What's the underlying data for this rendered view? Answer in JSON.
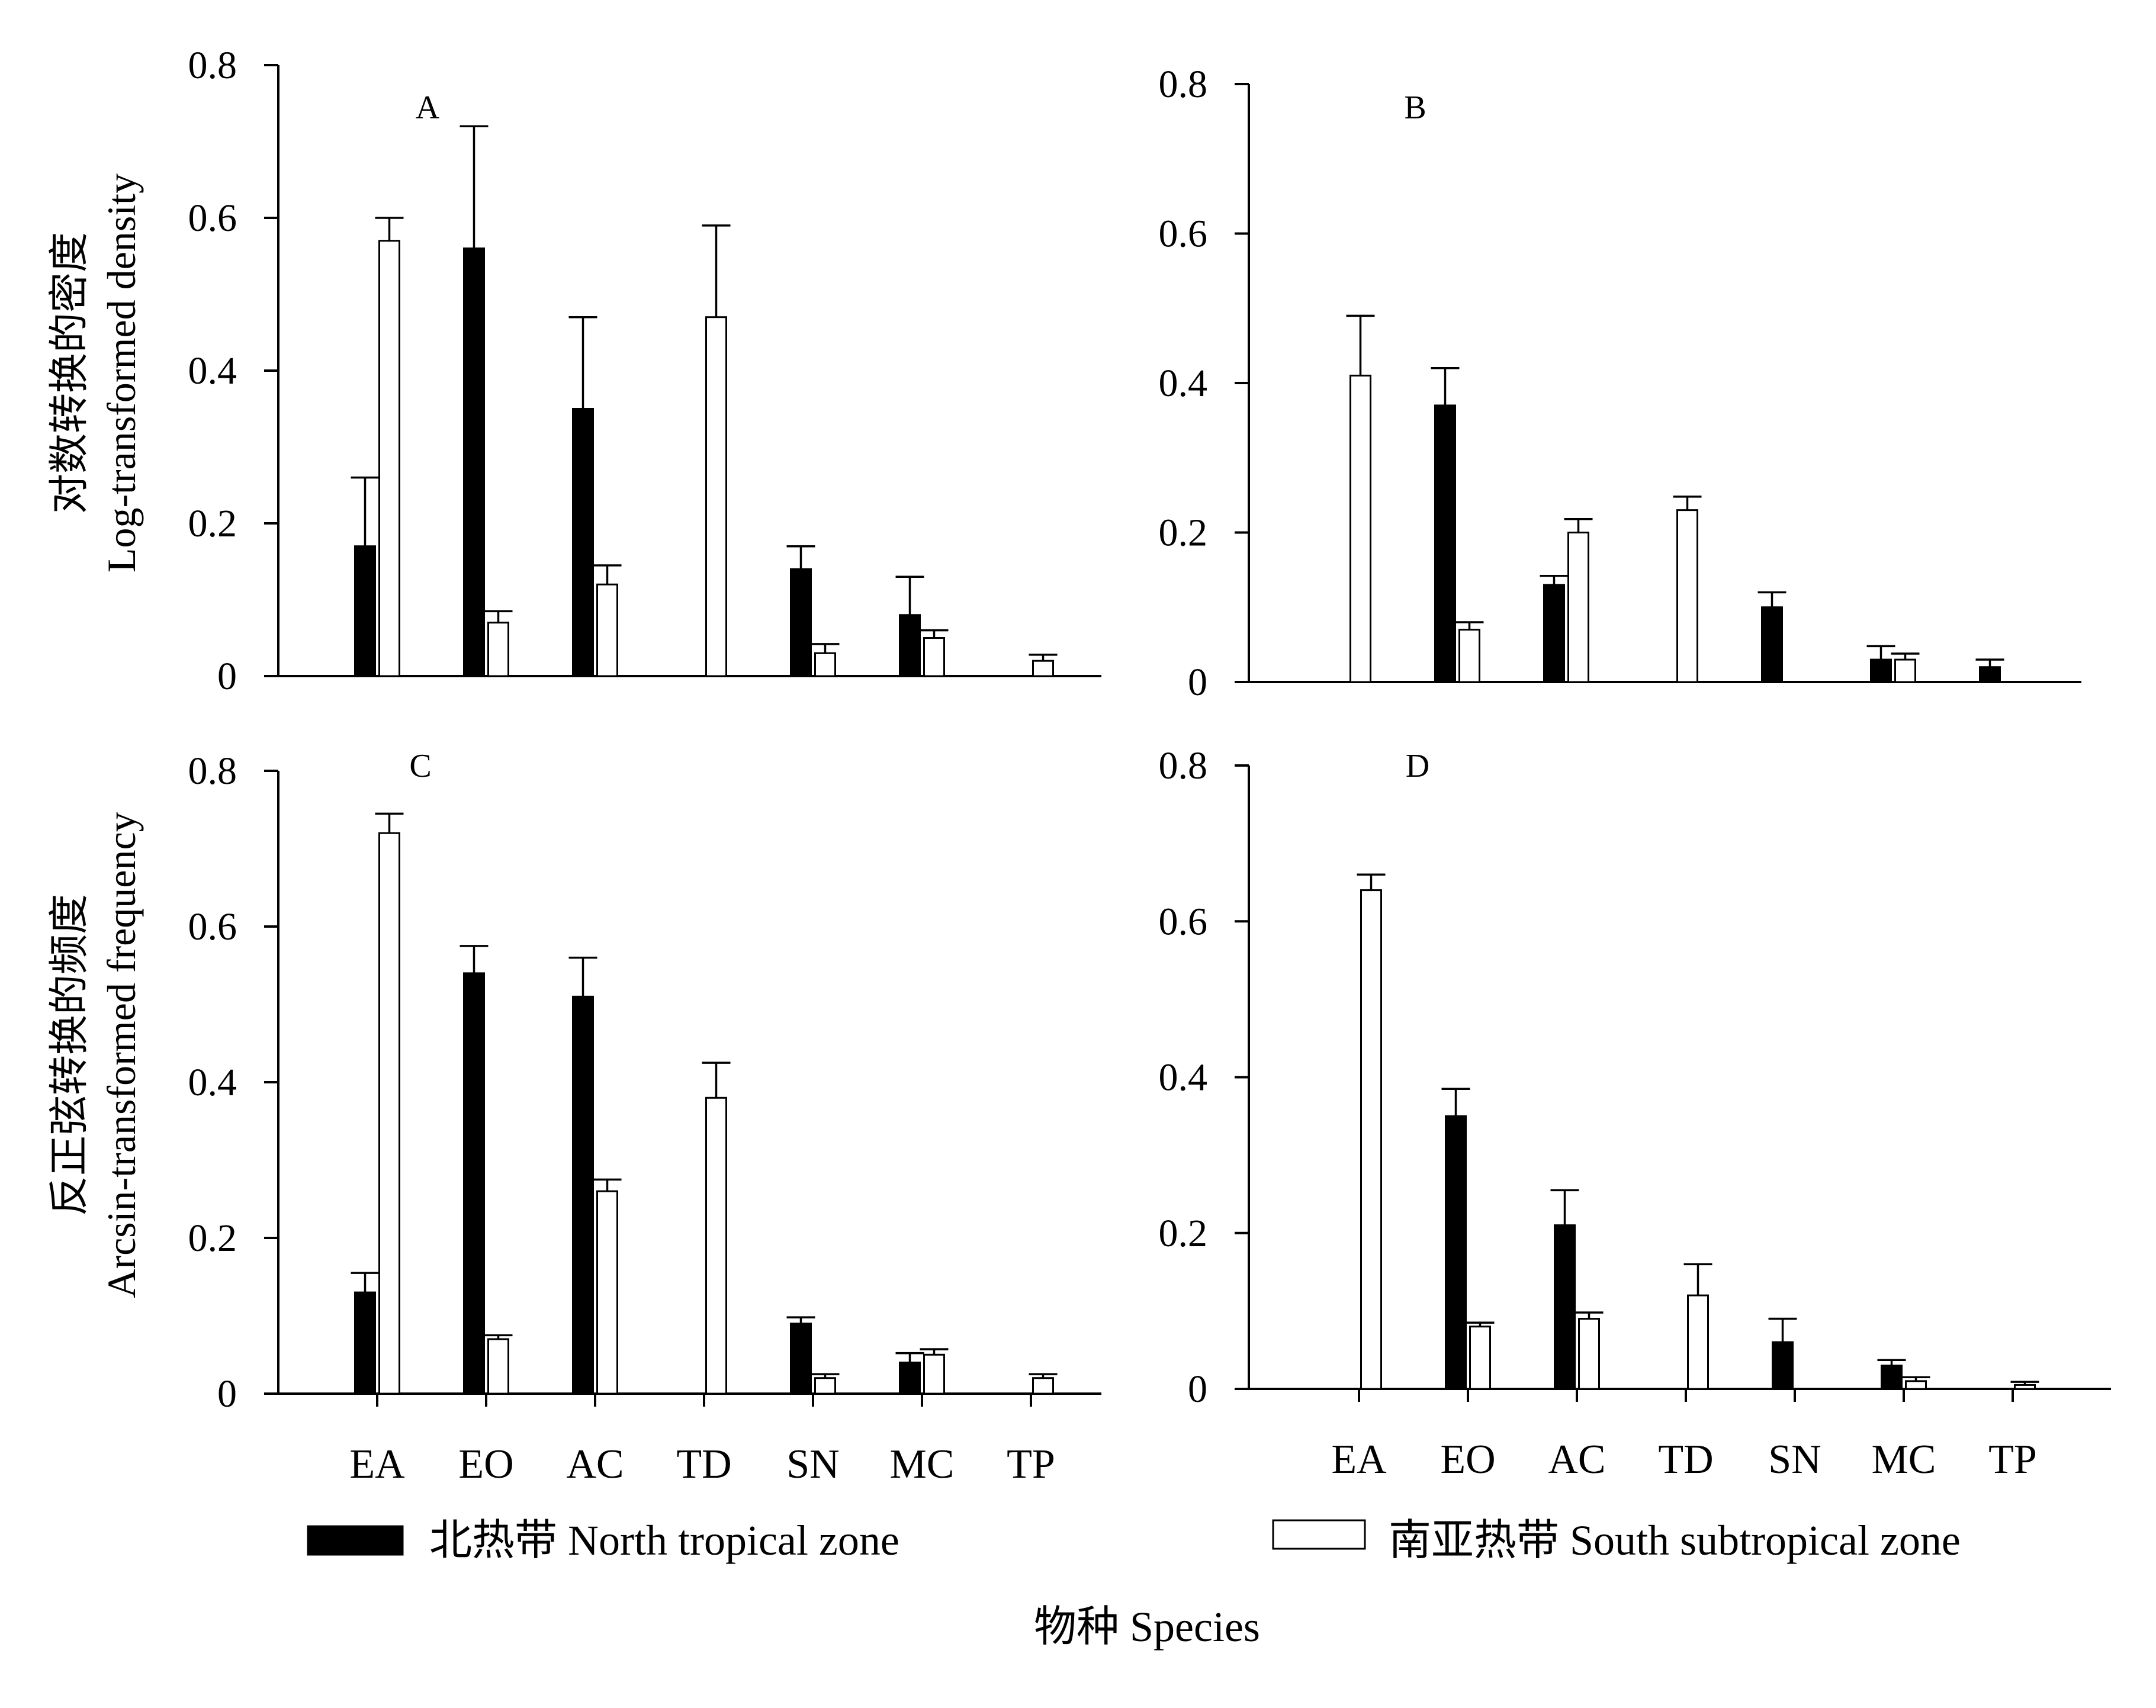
{
  "figure": {
    "ylabel_top": [
      "对数转换的密度",
      "Log-transformed density"
    ],
    "ylabel_bottom": [
      "反正弦转换的频度",
      "Arcsin-transformed frequency"
    ],
    "xlabel": "物种  Species",
    "legend": [
      {
        "label": "北热带 North tropical zone",
        "fill": "#000000"
      },
      {
        "label": "南亚热带 South subtropical zone",
        "fill": "#ffffff"
      }
    ]
  },
  "chart_data": [
    {
      "type": "bar",
      "panel_label": "A",
      "categories": [
        "EA",
        "EO",
        "AC",
        "TD",
        "SN",
        "MC",
        "TP"
      ],
      "ylim": [
        0,
        0.8
      ],
      "yticks": [
        "0",
        "0.2",
        "0.4",
        "0.6",
        "0.8"
      ],
      "series": [
        {
          "name": "北热带 North tropical zone",
          "values": [
            0.17,
            0.56,
            0.35,
            null,
            0.14,
            0.08,
            null
          ],
          "errors": [
            0.09,
            0.16,
            0.12,
            null,
            0.03,
            0.05,
            null
          ]
        },
        {
          "name": "南亚热带 South subtropical zone",
          "values": [
            0.57,
            0.07,
            0.12,
            0.47,
            0.03,
            0.05,
            0.02
          ],
          "errors": [
            0.03,
            0.015,
            0.025,
            0.12,
            0.012,
            0.01,
            0.008
          ]
        }
      ]
    },
    {
      "type": "bar",
      "panel_label": "B",
      "categories": [
        "EA",
        "EO",
        "AC",
        "TD",
        "SN",
        "MC",
        "TP"
      ],
      "ylim": [
        0,
        0.8
      ],
      "yticks": [
        "0",
        "0.2",
        "0.4",
        "0.6",
        "0.8"
      ],
      "series": [
        {
          "name": "北热带 North tropical zone",
          "values": [
            null,
            0.37,
            0.13,
            null,
            0.1,
            0.03,
            0.02
          ],
          "errors": [
            null,
            0.05,
            0.012,
            null,
            0.02,
            0.018,
            0.01
          ]
        },
        {
          "name": "南亚热带 South subtropical zone",
          "values": [
            0.41,
            0.07,
            0.2,
            0.23,
            null,
            0.03,
            null
          ],
          "errors": [
            0.08,
            0.01,
            0.018,
            0.018,
            null,
            0.008,
            null
          ]
        }
      ]
    },
    {
      "type": "bar",
      "panel_label": "C",
      "categories": [
        "EA",
        "EO",
        "AC",
        "TD",
        "SN",
        "MC",
        "TP"
      ],
      "ylim": [
        0,
        0.8
      ],
      "yticks": [
        "0",
        "0.2",
        "0.4",
        "0.6",
        "0.8"
      ],
      "series": [
        {
          "name": "北热带 North tropical zone",
          "values": [
            0.13,
            0.54,
            0.51,
            null,
            0.09,
            0.04,
            null
          ],
          "errors": [
            0.025,
            0.035,
            0.05,
            null,
            0.008,
            0.012,
            null
          ]
        },
        {
          "name": "南亚热带 South subtropical zone",
          "values": [
            0.72,
            0.07,
            0.26,
            0.38,
            0.02,
            0.05,
            0.02
          ],
          "errors": [
            0.025,
            0.005,
            0.015,
            0.045,
            0.005,
            0.007,
            0.005
          ]
        }
      ]
    },
    {
      "type": "bar",
      "panel_label": "D",
      "categories": [
        "EA",
        "EO",
        "AC",
        "TD",
        "SN",
        "MC",
        "TP"
      ],
      "ylim": [
        0,
        0.8
      ],
      "yticks": [
        "0",
        "0.2",
        "0.4",
        "0.6",
        "0.8"
      ],
      "series": [
        {
          "name": "北热带 North tropical zone",
          "values": [
            null,
            0.35,
            0.21,
            null,
            0.06,
            0.03,
            null
          ],
          "errors": [
            null,
            0.035,
            0.045,
            null,
            0.03,
            0.007,
            null
          ]
        },
        {
          "name": "南亚热带 South subtropical zone",
          "values": [
            0.64,
            0.08,
            0.09,
            0.12,
            null,
            0.01,
            0.005
          ],
          "errors": [
            0.02,
            0.005,
            0.008,
            0.04,
            null,
            0.005,
            0.004
          ]
        }
      ]
    }
  ]
}
